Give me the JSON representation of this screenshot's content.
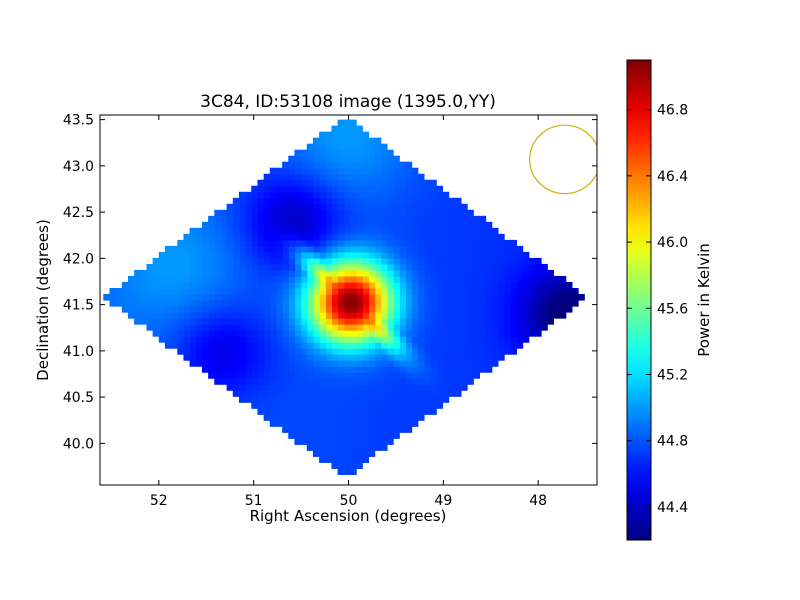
{
  "chart_data": {
    "type": "heatmap",
    "title": "3C84, ID:53108 image (1395.0,YY)",
    "xlabel": "Right Ascension (degrees)",
    "ylabel": "Declination (degrees)",
    "xlim": [
      52.62,
      47.38
    ],
    "ylim": [
      39.55,
      43.55
    ],
    "xticks": [
      52,
      51,
      50,
      49,
      48
    ],
    "yticks": [
      40.0,
      40.5,
      41.0,
      41.5,
      42.0,
      42.5,
      43.0,
      43.5
    ],
    "x_reversed": true,
    "colorbar": {
      "label": "Power in Kelvin",
      "range": [
        44.2,
        47.1
      ],
      "ticks": [
        44.4,
        44.8,
        45.2,
        45.6,
        46.0,
        46.4,
        46.8
      ],
      "colormap": "jet"
    },
    "map": {
      "footprint": "diamond",
      "center": [
        50.0,
        41.55
      ],
      "half_width_ra": 2.55,
      "half_height_dec": 1.95,
      "background_level": 44.75,
      "features": [
        {
          "kind": "peak",
          "ra": 49.98,
          "dec": 41.53,
          "value": 47.1
        },
        {
          "kind": "low",
          "ra": 50.6,
          "dec": 42.4,
          "value": 44.35
        },
        {
          "kind": "low",
          "ra": 51.35,
          "dec": 41.0,
          "value": 44.45
        },
        {
          "kind": "low",
          "ra": 47.7,
          "dec": 41.4,
          "value": 44.2
        },
        {
          "kind": "high",
          "ra": 50.0,
          "dec": 43.3,
          "value": 45.0
        },
        {
          "kind": "high",
          "ra": 51.8,
          "dec": 41.9,
          "value": 44.95
        }
      ]
    },
    "beam_marker": {
      "ra": 47.72,
      "dec": 43.07,
      "radius_deg": 0.37,
      "color": "#c8b400"
    },
    "grid": false,
    "legend": "none"
  }
}
